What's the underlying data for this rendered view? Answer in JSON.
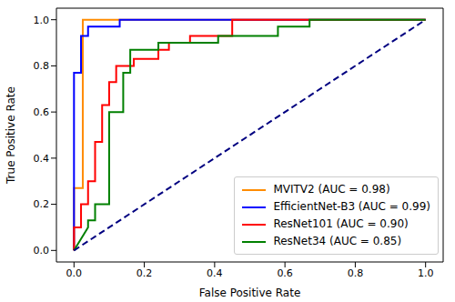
{
  "chart_data": {
    "type": "line",
    "xlabel": "False Positive Rate",
    "ylabel": "True Positive Rate",
    "xlim": [
      -0.05,
      1.05
    ],
    "ylim": [
      -0.05,
      1.05
    ],
    "xticks": [
      {
        "value": 0,
        "label": "0.0"
      },
      {
        "value": 0.2,
        "label": "0.2"
      },
      {
        "value": 0.4,
        "label": "0.4"
      },
      {
        "value": 0.6,
        "label": "0.6"
      },
      {
        "value": 0.8,
        "label": "0.8"
      },
      {
        "value": 1,
        "label": "1.0"
      }
    ],
    "yticks": [
      {
        "value": 0,
        "label": "0.0"
      },
      {
        "value": 0.2,
        "label": "0.2"
      },
      {
        "value": 0.4,
        "label": "0.4"
      },
      {
        "value": 0.6,
        "label": "0.6"
      },
      {
        "value": 0.8,
        "label": "0.8"
      },
      {
        "value": 1,
        "label": "1.0"
      }
    ],
    "grid": false,
    "legend": "lower right",
    "series": [
      {
        "name": "MVITV2 (AUC = 0.98)",
        "color": "#ff8c00",
        "x": [
          0,
          0,
          0.025,
          0.025,
          1
        ],
        "values": [
          0,
          0.27,
          0.27,
          1,
          1
        ]
      },
      {
        "name": "EfficientNet-B3 (AUC = 0.99)",
        "color": "#0000ff",
        "x": [
          0,
          0,
          0.02,
          0.02,
          0.04,
          0.04,
          0.13,
          0.13,
          1
        ],
        "values": [
          0,
          0.77,
          0.77,
          0.93,
          0.93,
          0.97,
          0.97,
          1,
          1
        ]
      },
      {
        "name": "ResNet101 (AUC = 0.90)",
        "color": "#ff0000",
        "x": [
          0,
          0,
          0.02,
          0.02,
          0.04,
          0.04,
          0.06,
          0.06,
          0.08,
          0.08,
          0.1,
          0.1,
          0.12,
          0.12,
          0.17,
          0.17,
          0.24,
          0.24,
          0.27,
          0.27,
          0.33,
          0.33,
          0.45,
          0.45,
          1
        ],
        "values": [
          0,
          0.1,
          0.1,
          0.2,
          0.2,
          0.3,
          0.3,
          0.47,
          0.47,
          0.63,
          0.63,
          0.73,
          0.73,
          0.8,
          0.8,
          0.83,
          0.83,
          0.87,
          0.87,
          0.9,
          0.9,
          0.93,
          0.93,
          1,
          1
        ]
      },
      {
        "name": "ResNet34 (AUC = 0.85)",
        "color": "#008000",
        "x": [
          0,
          0.04,
          0.04,
          0.06,
          0.06,
          0.1,
          0.1,
          0.14,
          0.14,
          0.16,
          0.16,
          0.24,
          0.24,
          0.41,
          0.41,
          0.58,
          0.58,
          0.67,
          0.67,
          1
        ],
        "values": [
          0,
          0.1,
          0.13,
          0.13,
          0.2,
          0.2,
          0.6,
          0.6,
          0.77,
          0.77,
          0.87,
          0.87,
          0.9,
          0.9,
          0.93,
          0.93,
          0.97,
          0.97,
          1,
          1
        ]
      },
      {
        "color": "#000080",
        "line_style": "dashed",
        "x": [
          0,
          1
        ],
        "values": [
          0,
          1
        ]
      }
    ]
  }
}
